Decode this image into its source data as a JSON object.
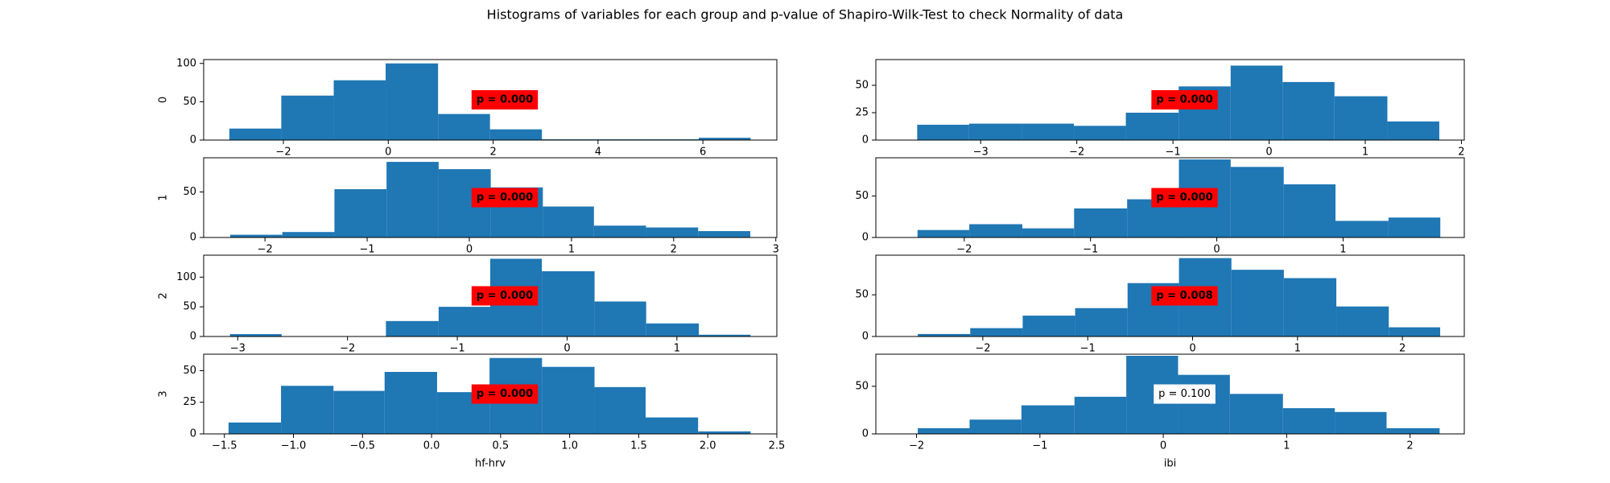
{
  "title": "Histograms of variables for each group and p-value of Shapiro-Wilk-Test to check Normality of data",
  "chart_data": [
    {
      "type": "histogram",
      "ylabel": "0",
      "color": "#1f77b4",
      "bins": [
        -3.03,
        -2.04,
        -1.04,
        -0.05,
        0.95,
        1.94,
        2.93,
        3.93,
        4.92,
        5.92,
        6.91
      ],
      "counts": [
        15,
        58,
        78,
        100,
        34,
        14,
        1,
        1,
        1,
        3
      ],
      "xlim": [
        -3.52,
        7.41
      ],
      "ylim": [
        0,
        105
      ],
      "xticks": [
        {
          "value": -2,
          "label": "−2"
        },
        0,
        2,
        4,
        6
      ],
      "yticks": [
        0,
        50,
        100
      ],
      "annotation": "p = 0.000",
      "annotation_background": "#ff0000",
      "annotation_bold": true
    },
    {
      "type": "histogram",
      "color": "#1f77b4",
      "bins": [
        -3.66,
        -3.12,
        -2.57,
        -2.03,
        -1.49,
        -0.94,
        -0.4,
        0.14,
        0.68,
        1.23,
        1.77
      ],
      "counts": [
        14,
        15,
        15,
        13,
        25,
        49,
        68,
        53,
        40,
        17
      ],
      "xlim": [
        -4.09,
        2.03
      ],
      "ylim": [
        0,
        73.5
      ],
      "xticks": [
        {
          "value": -3,
          "label": "−3"
        },
        {
          "value": -2,
          "label": "−2"
        },
        {
          "value": -1,
          "label": "−1"
        },
        0,
        1,
        2
      ],
      "yticks": [
        0,
        25,
        50
      ],
      "annotation": "p = 0.000",
      "annotation_background": "#ff0000",
      "annotation_bold": true
    },
    {
      "type": "histogram",
      "ylabel": "1",
      "color": "#1f77b4",
      "bins": [
        -2.34,
        -1.83,
        -1.32,
        -0.81,
        -0.3,
        0.21,
        0.72,
        1.22,
        1.73,
        2.24,
        2.75
      ],
      "counts": [
        3,
        6,
        53,
        83,
        75,
        55,
        34,
        13,
        11,
        7
      ],
      "xlim": [
        -2.6,
        3.01
      ],
      "ylim": [
        0,
        87.5
      ],
      "xticks": [
        {
          "value": -2,
          "label": "−2"
        },
        {
          "value": -1,
          "label": "−1"
        },
        0,
        1,
        2,
        3
      ],
      "yticks": [
        0,
        50
      ],
      "annotation": "p = 0.000",
      "annotation_background": "#ff0000",
      "annotation_bold": true
    },
    {
      "type": "histogram",
      "color": "#1f77b4",
      "bins": [
        -2.37,
        -1.96,
        -1.54,
        -1.13,
        -0.71,
        -0.3,
        0.11,
        0.53,
        0.94,
        1.36,
        1.77
      ],
      "counts": [
        9,
        16,
        11,
        35,
        46,
        94,
        85,
        64,
        20,
        24
      ],
      "xlim": [
        -2.7,
        1.96
      ],
      "ylim": [
        0,
        96
      ],
      "xticks": [
        {
          "value": -2,
          "label": "−2"
        },
        {
          "value": -1,
          "label": "−1"
        },
        0,
        1
      ],
      "yticks": [
        0,
        50
      ],
      "annotation": "p = 0.000",
      "annotation_background": "#ff0000",
      "annotation_bold": true
    },
    {
      "type": "histogram",
      "ylabel": "2",
      "color": "#1f77b4",
      "bins": [
        -3.07,
        -2.6,
        -2.12,
        -1.65,
        -1.17,
        -0.7,
        -0.23,
        0.25,
        0.72,
        1.2,
        1.67
      ],
      "counts": [
        4,
        0,
        0,
        26,
        50,
        131,
        110,
        59,
        22,
        3
      ],
      "xlim": [
        -3.31,
        1.91
      ],
      "ylim": [
        0,
        137
      ],
      "xticks": [
        {
          "value": -3,
          "label": "−3"
        },
        {
          "value": -2,
          "label": "−2"
        },
        {
          "value": -1,
          "label": "−1"
        },
        0,
        1
      ],
      "yticks": [
        0,
        50,
        100
      ],
      "annotation": "p = 0.000",
      "annotation_background": "#ff0000",
      "annotation_bold": true
    },
    {
      "type": "histogram",
      "color": "#1f77b4",
      "bins": [
        -2.62,
        -2.12,
        -1.62,
        -1.12,
        -0.62,
        -0.13,
        0.37,
        0.87,
        1.37,
        1.87,
        2.36
      ],
      "counts": [
        3,
        10,
        25,
        34,
        64,
        94,
        80,
        70,
        36,
        11
      ],
      "xlim": [
        -3.02,
        2.59
      ],
      "ylim": [
        0,
        97.5
      ],
      "xticks": [
        {
          "value": -2,
          "label": "−2"
        },
        {
          "value": -1,
          "label": "−1"
        },
        0,
        1,
        2
      ],
      "yticks": [
        0,
        50
      ],
      "annotation": "p = 0.008",
      "annotation_background": "#ff0000",
      "annotation_bold": true
    },
    {
      "type": "histogram",
      "ylabel": "3",
      "xlabel": "hf-hrv",
      "color": "#1f77b4",
      "bins": [
        -1.47,
        -1.09,
        -0.71,
        -0.34,
        0.04,
        0.42,
        0.8,
        1.18,
        1.55,
        1.93,
        2.31
      ],
      "counts": [
        9,
        38,
        34,
        49,
        33,
        60,
        53,
        37,
        13,
        2
      ],
      "xlim": [
        -1.65,
        2.5
      ],
      "ylim": [
        0,
        63
      ],
      "xticks": [
        {
          "value": -1.5,
          "label": "−1.5"
        },
        {
          "value": -1.0,
          "label": "−1.0"
        },
        {
          "value": -0.5,
          "label": "−0.5"
        },
        {
          "value": 0,
          "label": "0.0"
        },
        0.5,
        {
          "value": 1,
          "label": "1.0"
        },
        1.5,
        {
          "value": 2,
          "label": "2.0"
        },
        2.5
      ],
      "yticks": [
        0,
        25,
        50
      ],
      "annotation": "p = 0.000",
      "annotation_background": "#ff0000",
      "annotation_bold": true
    },
    {
      "type": "histogram",
      "xlabel": "ibi",
      "color": "#1f77b4",
      "bins": [
        -1.99,
        -1.57,
        -1.15,
        -0.72,
        -0.3,
        0.12,
        0.54,
        0.97,
        1.39,
        1.81,
        2.24
      ],
      "counts": [
        6,
        15,
        30,
        39,
        82,
        62,
        42,
        27,
        23,
        6
      ],
      "xlim": [
        -2.33,
        2.44
      ],
      "ylim": [
        0,
        83.7
      ],
      "xticks": [
        {
          "value": -2,
          "label": "−2"
        },
        {
          "value": -1,
          "label": "−1"
        },
        0,
        1,
        2
      ],
      "yticks": [
        0,
        50
      ],
      "annotation": "p = 0.100",
      "annotation_background": "#ffffff",
      "annotation_bold": false
    }
  ]
}
